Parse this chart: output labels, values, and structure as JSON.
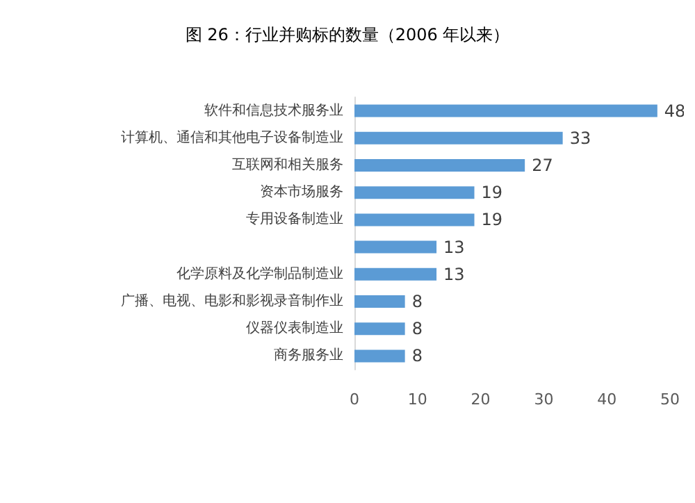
{
  "chart_data": {
    "type": "bar",
    "orientation": "horizontal",
    "title": "图 26：行业并购标的数量（2006 年以来）",
    "categories": [
      "软件和信息技术服务业",
      "计算机、通信和其他电子设备制造业",
      "互联网和相关服务",
      "资本市场服务",
      "专用设备制造业",
      null,
      "化学原料及化学制品制造业",
      "广播、电视、电影和影视录音制作业",
      "仪器仪表制造业",
      "商务服务业"
    ],
    "values": [
      48,
      33,
      27,
      19,
      19,
      13,
      13,
      8,
      8,
      8
    ],
    "color": "#5b9bd5",
    "xlim": [
      0,
      50
    ],
    "xticks": [
      0,
      10,
      20,
      30,
      40,
      50
    ],
    "grid": false,
    "data_labels": true
  }
}
